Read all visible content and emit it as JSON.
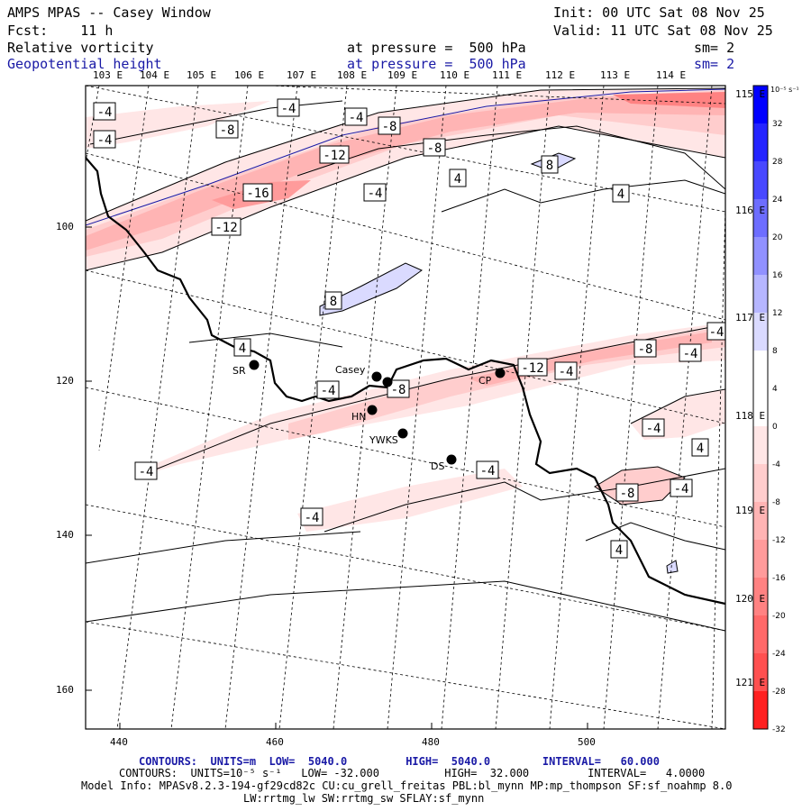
{
  "header": {
    "title": "AMPS MPAS -- Casey Window",
    "init": "Init: 00 UTC Sat 08 Nov 25",
    "forecast": "Fcst:    11 h",
    "valid": "Valid: 11 UTC Sat 08 Nov 25",
    "field1_name": "Relative vorticity",
    "field1_level": "at pressure =  500 hPa",
    "field1_smooth": "sm= 2",
    "field2_name": "Geopotential height",
    "field2_level": "at pressure =  500 hPa",
    "field2_smooth": "sm= 2"
  },
  "map": {
    "longitude_top_labels": [
      "103 E",
      "104 E",
      "105 E",
      "106 E",
      "107 E",
      "108 E",
      "109 E",
      "110 E",
      "111 E",
      "112 E",
      "113 E",
      "114 E"
    ],
    "longitude_right_labels": [
      "115 E",
      "116 E",
      "117 E",
      "118 E",
      "119 E",
      "120 E",
      "121 E"
    ],
    "x_axis_ticks": [
      "440",
      "460",
      "480",
      "500"
    ],
    "y_axis_ticks": [
      "100",
      "120",
      "140",
      "160"
    ],
    "stations": [
      {
        "name": "SR"
      },
      {
        "name": "Casey"
      },
      {
        "name": "HN"
      },
      {
        "name": "YWKS"
      },
      {
        "name": "CP"
      },
      {
        "name": "DS"
      }
    ],
    "contour_labels": [
      "-4",
      "-4",
      "-4",
      "-8",
      "-8",
      "-8",
      "-12",
      "-16",
      "-12",
      "-4",
      "4",
      "4",
      "8",
      "8",
      "4",
      "-4",
      "-8",
      "-12",
      "-8",
      "-4",
      "-4",
      "-4",
      "-4",
      "-4",
      "-4",
      "-8",
      "-4",
      "4",
      "4",
      "-4",
      "-4"
    ]
  },
  "colorbar": {
    "unit": "10⁻⁵ s⁻¹",
    "labels": [
      "32",
      "28",
      "24",
      "20",
      "16",
      "12",
      "8",
      "4",
      "0",
      "-4",
      "-8",
      "-12",
      "-16",
      "-20",
      "-24",
      "-28",
      "-32"
    ],
    "colors": [
      "#0000ff",
      "#2424ff",
      "#4848ff",
      "#6d6dff",
      "#9191ff",
      "#b6b6ff",
      "#dadaff",
      "#ffffff",
      "#ffffff",
      "#ffe6e6",
      "#ffcdcd",
      "#ffb4b4",
      "#ff9b9b",
      "#ff8282",
      "#ff6969",
      "#ff5050",
      "#ff2020"
    ]
  },
  "footer": {
    "contours1": "CONTOURS:  UNITS=m  LOW=  5040.0         HIGH=  5040.0        INTERVAL=   60.000",
    "contours2": "CONTOURS:  UNITS=10⁻⁵ s⁻¹   LOW= -32.000          HIGH=  32.000         INTERVAL=   4.0000",
    "model_info1": "Model Info: MPASv8.2.3-194-gf29cd82c CU:cu_grell_freitas PBL:bl_mynn MP:mp_thompson SF:sf_noahmp 8.0",
    "model_info2": "LW:rrtmg_lw SW:rrtmg_sw SFLAY:sf_mynn"
  }
}
